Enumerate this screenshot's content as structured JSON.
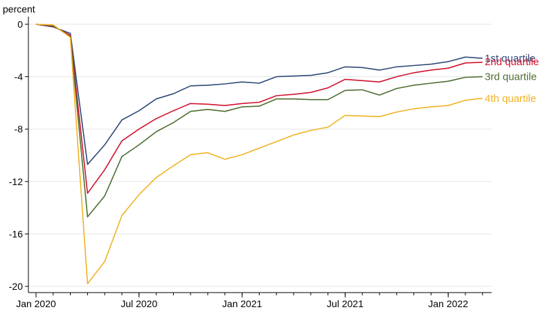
{
  "chart_data": {
    "type": "line",
    "title": "",
    "ylabel": "percent",
    "xlabel": "",
    "ylim": [
      -20.5,
      0.5
    ],
    "yticks": [
      0,
      -4,
      -8,
      -12,
      -16,
      -20
    ],
    "grid": true,
    "legend_placement": "right end of lines",
    "x": [
      "2020-01",
      "2020-02",
      "2020-03",
      "2020-04",
      "2020-05",
      "2020-06",
      "2020-07",
      "2020-08",
      "2020-09",
      "2020-10",
      "2020-11",
      "2020-12",
      "2021-01",
      "2021-02",
      "2021-03",
      "2021-04",
      "2021-05",
      "2021-06",
      "2021-07",
      "2021-08",
      "2021-09",
      "2021-10",
      "2021-11",
      "2021-12",
      "2022-01",
      "2022-02",
      "2022-03"
    ],
    "x_ticks": [
      {
        "x": "2020-01",
        "label": "Jan 2020"
      },
      {
        "x": "2020-07",
        "label": "Jul 2020"
      },
      {
        "x": "2021-01",
        "label": "Jan 2021"
      },
      {
        "x": "2021-07",
        "label": "Jul 2021"
      },
      {
        "x": "2022-01",
        "label": "Jan 2022"
      }
    ],
    "series": [
      {
        "name": "1st quartile",
        "color": "#2f4a7a",
        "values": [
          0,
          -0.2,
          -0.7,
          -10.7,
          -9.2,
          -7.3,
          -6.6,
          -5.7,
          -5.3,
          -4.7,
          -4.65,
          -4.55,
          -4.4,
          -4.5,
          -4.0,
          -3.95,
          -3.9,
          -3.7,
          -3.25,
          -3.3,
          -3.5,
          -3.25,
          -3.15,
          -3.05,
          -2.85,
          -2.5,
          -2.6
        ]
      },
      {
        "name": "2nd quartile",
        "color": "#d0142f",
        "values": [
          0,
          -0.15,
          -0.85,
          -12.9,
          -11.1,
          -8.9,
          -8.0,
          -7.2,
          -6.6,
          -6.05,
          -6.1,
          -6.2,
          -6.05,
          -5.95,
          -5.45,
          -5.35,
          -5.2,
          -4.85,
          -4.2,
          -4.3,
          -4.4,
          -4.0,
          -3.7,
          -3.5,
          -3.35,
          -2.95,
          -2.9
        ]
      },
      {
        "name": "3rd quartile",
        "color": "#4e6d31",
        "values": [
          0,
          -0.1,
          -0.95,
          -14.7,
          -13.1,
          -10.1,
          -9.2,
          -8.2,
          -7.5,
          -6.65,
          -6.5,
          -6.65,
          -6.3,
          -6.25,
          -5.7,
          -5.7,
          -5.75,
          -5.75,
          -5.05,
          -5.0,
          -5.4,
          -4.9,
          -4.65,
          -4.5,
          -4.35,
          -4.05,
          -4.0
        ]
      },
      {
        "name": "4th quartile",
        "color": "#f0b323",
        "values": [
          0,
          -0.05,
          -1.0,
          -19.8,
          -18.1,
          -14.6,
          -13.0,
          -11.7,
          -10.8,
          -9.95,
          -9.8,
          -10.3,
          -9.95,
          -9.45,
          -8.95,
          -8.45,
          -8.1,
          -7.85,
          -6.95,
          -7.0,
          -7.05,
          -6.7,
          -6.45,
          -6.3,
          -6.2,
          -5.8,
          -5.65
        ]
      }
    ]
  }
}
